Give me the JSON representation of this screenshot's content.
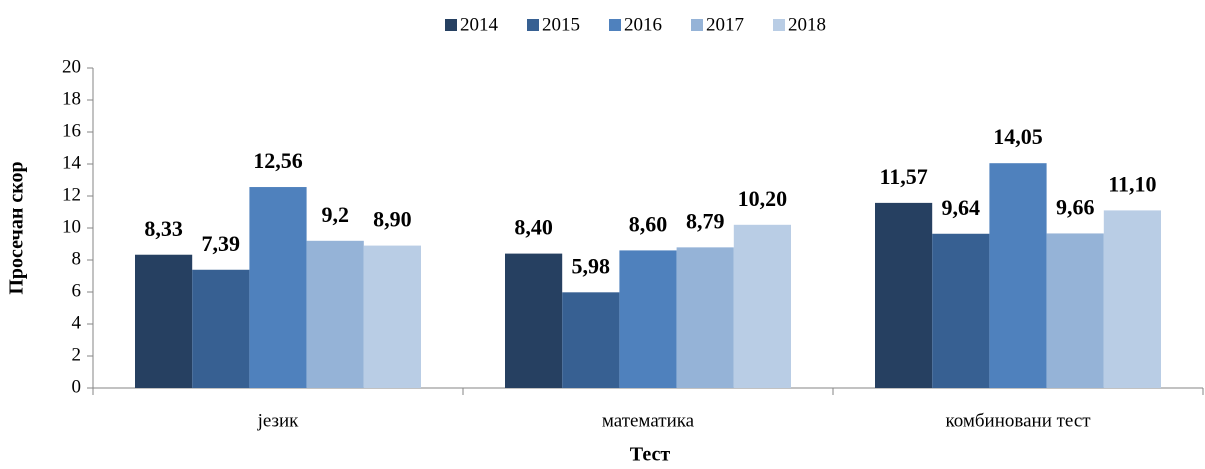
{
  "chart_data": {
    "type": "bar",
    "categories": [
      "језик",
      "математика",
      "комбиновани тест"
    ],
    "series": [
      {
        "name": "2014",
        "color": "#264061",
        "values": [
          8.33,
          8.4,
          11.57
        ],
        "value_labels": [
          "8,33",
          "8,40",
          "11,57"
        ]
      },
      {
        "name": "2015",
        "color": "#376092",
        "values": [
          7.39,
          5.98,
          9.64
        ],
        "value_labels": [
          "7,39",
          "5,98",
          "9,64"
        ]
      },
      {
        "name": "2016",
        "color": "#4f81bd",
        "values": [
          12.56,
          8.6,
          14.05
        ],
        "value_labels": [
          "12,56",
          "8,60",
          "14,05"
        ]
      },
      {
        "name": "2017",
        "color": "#95b3d7",
        "values": [
          9.2,
          8.79,
          9.66
        ],
        "value_labels": [
          "9,2",
          "8,79",
          "9,66"
        ]
      },
      {
        "name": "2018",
        "color": "#b9cde5",
        "values": [
          8.9,
          10.2,
          11.1
        ],
        "value_labels": [
          "8,90",
          "10,20",
          "11,10"
        ]
      }
    ],
    "xlabel": "Тест",
    "ylabel": "Просечан скор",
    "ylim": [
      0,
      20
    ],
    "yticks": [
      0,
      2,
      4,
      6,
      8,
      10,
      12,
      14,
      16,
      18,
      20
    ],
    "legend": "top",
    "grid": false
  }
}
